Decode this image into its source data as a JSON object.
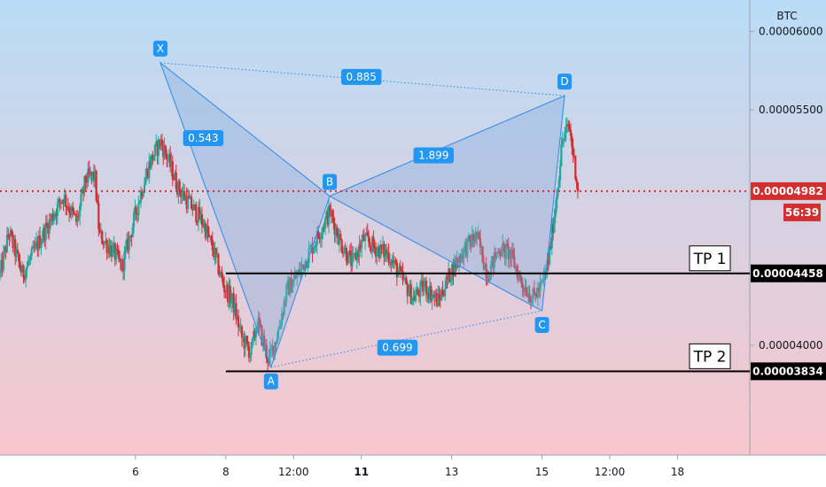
{
  "chart_data": {
    "type": "candlestick",
    "symbol_unit": "BTC",
    "colors": {
      "up": "#26a69a",
      "down": "#d32f2f",
      "pattern_fill": "#7ea8dc",
      "pattern_line": "#2a8bea",
      "label_bg": "#2196f3",
      "current_price": "#d32f2f",
      "bg_top": "#b9dcf6",
      "bg_bottom": "#f8c6cc"
    },
    "y_axis": {
      "range": [
        3.3e-05,
        6.2e-05
      ],
      "ticks": [
        "0.00006000",
        "0.00005500",
        "0.00004000"
      ]
    },
    "x_axis": {
      "range": [
        3.0,
        19.6
      ],
      "ticks": [
        {
          "x": 6,
          "label": "6",
          "bold": false
        },
        {
          "x": 8,
          "label": "8",
          "bold": false
        },
        {
          "x": 9.5,
          "label": "12:00",
          "bold": false
        },
        {
          "x": 11,
          "label": "11",
          "bold": true
        },
        {
          "x": 13,
          "label": "13",
          "bold": false
        },
        {
          "x": 15,
          "label": "15",
          "bold": false
        },
        {
          "x": 16.5,
          "label": "12:00",
          "bold": false
        },
        {
          "x": 18,
          "label": "18",
          "bold": false
        }
      ]
    },
    "current_price": {
      "value": 4.982e-05,
      "label": "0.00004982",
      "countdown": "56:39"
    },
    "pattern": {
      "points": [
        {
          "name": "X",
          "x": 6.55,
          "y": 5.8e-05
        },
        {
          "name": "A",
          "x": 9.0,
          "y": 3.86e-05
        },
        {
          "name": "B",
          "x": 10.3,
          "y": 4.95e-05
        },
        {
          "name": "C",
          "x": 15.0,
          "y": 4.22e-05
        },
        {
          "name": "D",
          "x": 15.5,
          "y": 5.59e-05
        }
      ],
      "ratios": [
        {
          "label": "0.885",
          "x": 11.0,
          "y": 5.71e-05
        },
        {
          "label": "0.543",
          "x": 7.5,
          "y": 5.32e-05
        },
        {
          "label": "1.899",
          "x": 12.6,
          "y": 5.21e-05
        },
        {
          "label": "0.699",
          "x": 11.8,
          "y": 3.985e-05
        }
      ]
    },
    "targets": [
      {
        "label": "TP 1",
        "value": 4.458e-05,
        "value_label": "0.00004458",
        "x_start": 8.0
      },
      {
        "label": "TP 2",
        "value": 3.834e-05,
        "value_label": "0.00003834",
        "x_start": 8.0
      }
    ],
    "series": [
      {
        "name": "",
        "anchors": [
          [
            3.0,
            4.45e-05
          ],
          [
            3.2,
            4.72e-05
          ],
          [
            3.5,
            4.45e-05
          ],
          [
            3.9,
            4.68e-05
          ],
          [
            4.4,
            4.95e-05
          ],
          [
            4.7,
            4.78e-05
          ],
          [
            4.9,
            5.06e-05
          ],
          [
            5.1,
            5.08e-05
          ],
          [
            5.2,
            4.7e-05
          ],
          [
            5.5,
            4.6e-05
          ],
          [
            5.7,
            4.5e-05
          ],
          [
            5.9,
            4.72e-05
          ],
          [
            6.1,
            4.95e-05
          ],
          [
            6.3,
            5.15e-05
          ],
          [
            6.55,
            5.3e-05
          ],
          [
            6.7,
            5.2e-05
          ],
          [
            6.95,
            5e-05
          ],
          [
            7.2,
            4.9e-05
          ],
          [
            7.5,
            4.78e-05
          ],
          [
            7.75,
            4.58e-05
          ],
          [
            7.95,
            4.38e-05
          ],
          [
            8.15,
            4.28e-05
          ],
          [
            8.35,
            4.05e-05
          ],
          [
            8.55,
            3.95e-05
          ],
          [
            8.7,
            4.15e-05
          ],
          [
            8.95,
            3.9e-05
          ],
          [
            9.15,
            4.08e-05
          ],
          [
            9.35,
            4.35e-05
          ],
          [
            9.6,
            4.45e-05
          ],
          [
            9.9,
            4.62e-05
          ],
          [
            10.3,
            4.85e-05
          ],
          [
            10.55,
            4.65e-05
          ],
          [
            10.8,
            4.52e-05
          ],
          [
            11.05,
            4.68e-05
          ],
          [
            11.3,
            4.62e-05
          ],
          [
            11.6,
            4.58e-05
          ],
          [
            11.9,
            4.42e-05
          ],
          [
            12.15,
            4.3e-05
          ],
          [
            12.4,
            4.38e-05
          ],
          [
            12.7,
            4.28e-05
          ],
          [
            13.0,
            4.48e-05
          ],
          [
            13.3,
            4.62e-05
          ],
          [
            13.55,
            4.7e-05
          ],
          [
            13.8,
            4.45e-05
          ],
          [
            14.05,
            4.62e-05
          ],
          [
            14.3,
            4.58e-05
          ],
          [
            14.55,
            4.4e-05
          ],
          [
            14.8,
            4.3e-05
          ],
          [
            15.0,
            4.38e-05
          ],
          [
            15.15,
            4.55e-05
          ],
          [
            15.3,
            4.9e-05
          ],
          [
            15.45,
            5.3e-05
          ],
          [
            15.6,
            5.4e-05
          ],
          [
            15.75,
            5.1e-05
          ],
          [
            15.8,
            4.98e-05
          ]
        ]
      }
    ]
  },
  "labels": {
    "unit": "BTC",
    "current_price": "0.00004982",
    "countdown": "56:39",
    "tp1_value": "0.00004458",
    "tp2_value": "0.00003834"
  }
}
